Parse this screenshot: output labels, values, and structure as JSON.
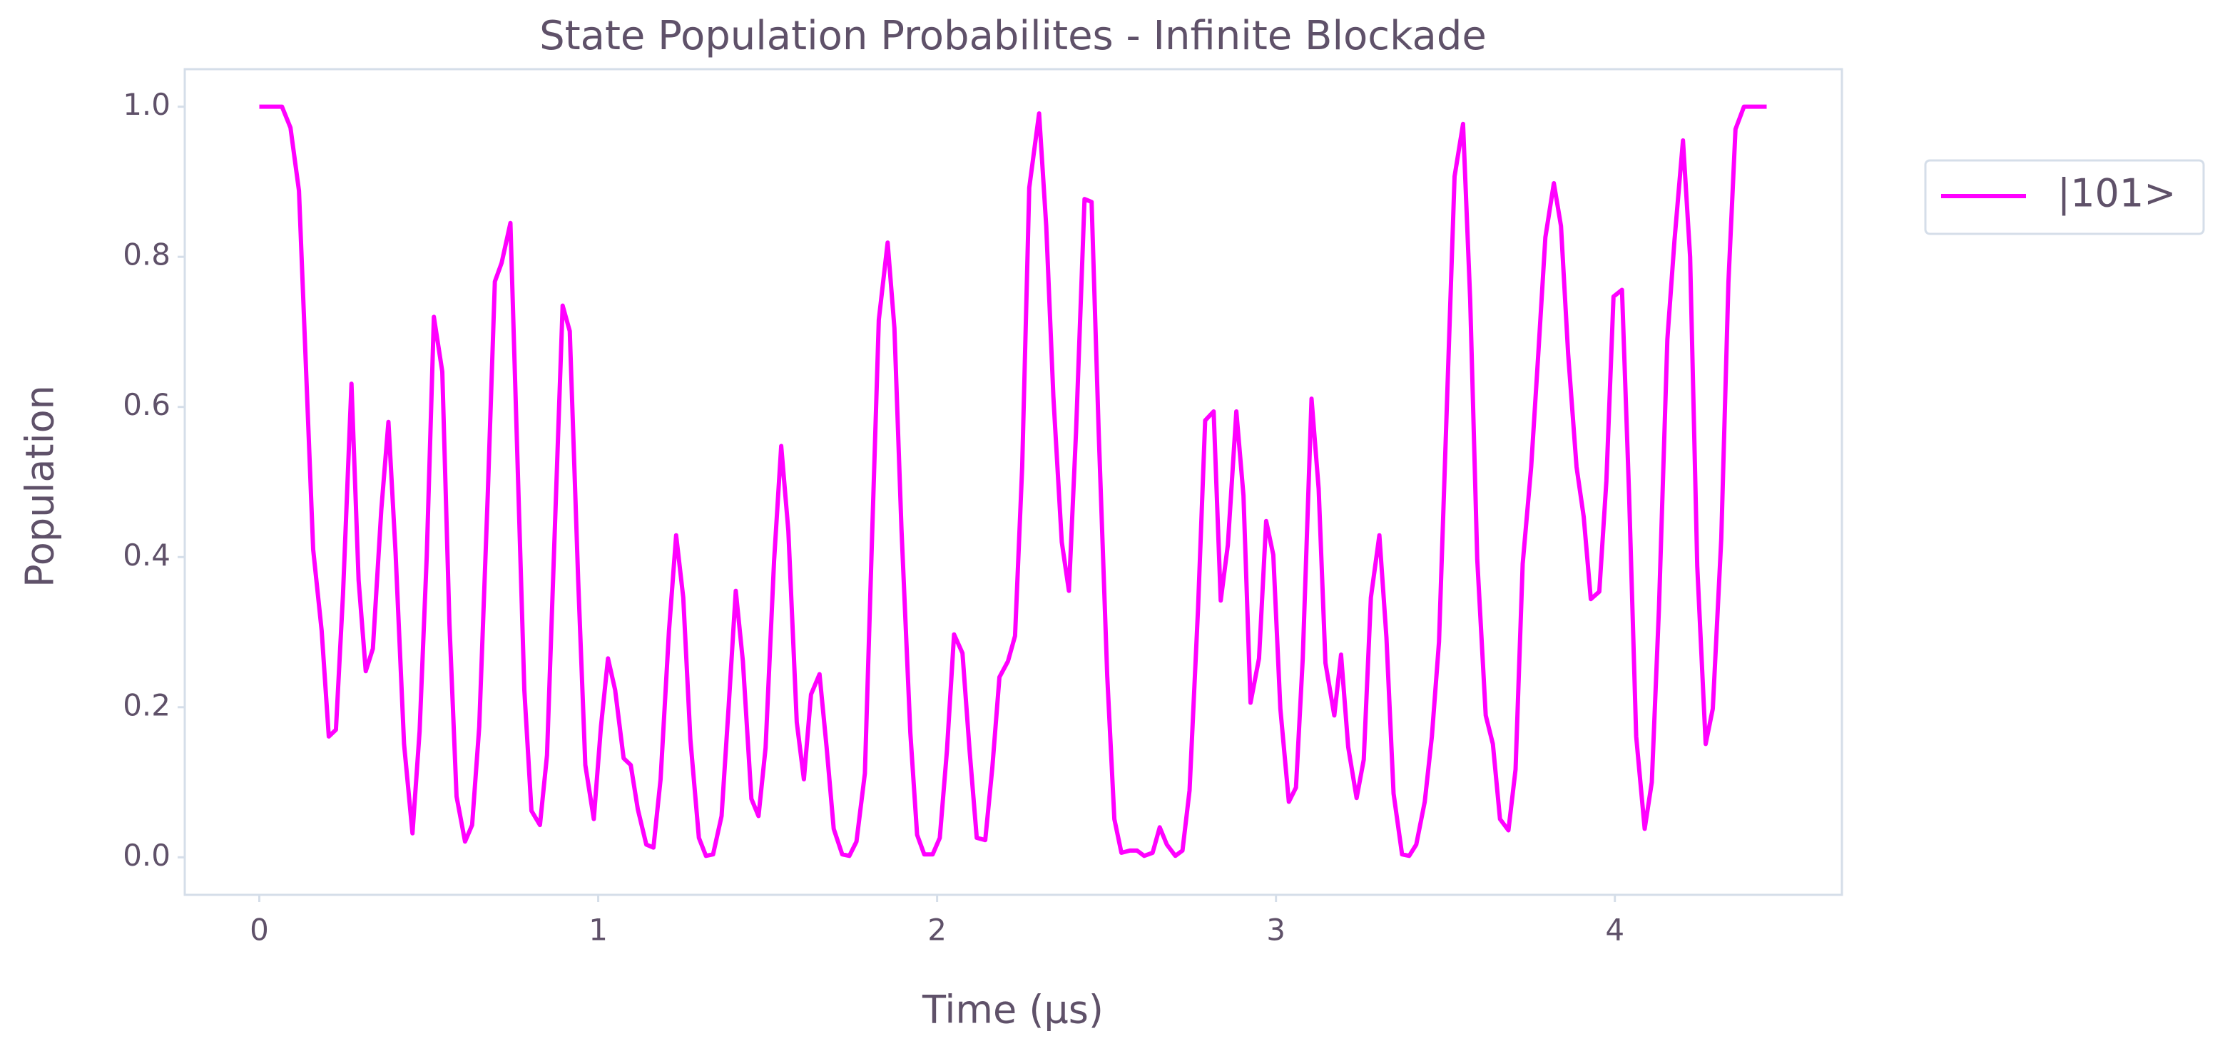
{
  "chart_data": {
    "type": "line",
    "title": "State Population Probabilites - Infinite Blockade",
    "x_label": "Time (μs)",
    "y_label": "Population",
    "x": [
      0.0,
      0.067,
      0.092,
      0.117,
      0.159,
      0.184,
      0.205,
      0.226,
      0.247,
      0.272,
      0.293,
      0.314,
      0.335,
      0.36,
      0.381,
      0.402,
      0.427,
      0.452,
      0.473,
      0.494,
      0.515,
      0.54,
      0.561,
      0.582,
      0.607,
      0.628,
      0.649,
      0.674,
      0.695,
      0.715,
      0.741,
      0.762,
      0.782,
      0.803,
      0.828,
      0.849,
      0.874,
      0.895,
      0.916,
      0.941,
      0.962,
      0.987,
      1.008,
      1.029,
      1.05,
      1.075,
      1.096,
      1.117,
      1.142,
      1.163,
      1.184,
      1.209,
      1.23,
      1.251,
      1.272,
      1.297,
      1.318,
      1.339,
      1.364,
      1.385,
      1.406,
      1.427,
      1.452,
      1.473,
      1.494,
      1.519,
      1.54,
      1.561,
      1.586,
      1.607,
      1.628,
      1.653,
      1.674,
      1.695,
      1.72,
      1.741,
      1.762,
      1.787,
      1.808,
      1.828,
      1.854,
      1.874,
      1.895,
      1.921,
      1.941,
      1.962,
      1.987,
      2.008,
      2.029,
      2.05,
      2.075,
      2.096,
      2.117,
      2.142,
      2.163,
      2.184,
      2.209,
      2.23,
      2.251,
      2.272,
      2.301,
      2.322,
      2.343,
      2.368,
      2.389,
      2.41,
      2.435,
      2.456,
      2.477,
      2.502,
      2.523,
      2.544,
      2.569,
      2.59,
      2.611,
      2.636,
      2.657,
      2.678,
      2.703,
      2.724,
      2.745,
      2.77,
      2.791,
      2.816,
      2.837,
      2.858,
      2.883,
      2.904,
      2.925,
      2.95,
      2.971,
      2.992,
      3.013,
      3.038,
      3.059,
      3.079,
      3.105,
      3.126,
      3.146,
      3.172,
      3.192,
      3.213,
      3.238,
      3.259,
      3.28,
      3.305,
      3.326,
      3.347,
      3.372,
      3.393,
      3.414,
      3.439,
      3.46,
      3.481,
      3.506,
      3.527,
      3.552,
      3.573,
      3.594,
      3.619,
      3.64,
      3.661,
      3.686,
      3.707,
      3.728,
      3.753,
      3.774,
      3.795,
      3.82,
      3.841,
      3.862,
      3.887,
      3.908,
      3.929,
      3.954,
      3.975,
      3.996,
      4.021,
      4.042,
      4.063,
      4.088,
      4.109,
      4.13,
      4.155,
      4.176,
      4.201,
      4.222,
      4.243,
      4.268,
      4.289,
      4.314,
      4.335,
      4.356,
      4.381,
      4.448
    ],
    "series": [
      {
        "name": "|101>",
        "color": "#ff00ff",
        "values": [
          1.0,
          1.0,
          0.972,
          0.888,
          0.41,
          0.302,
          0.161,
          0.17,
          0.35,
          0.631,
          0.369,
          0.248,
          0.278,
          0.463,
          0.58,
          0.406,
          0.151,
          0.032,
          0.168,
          0.401,
          0.72,
          0.647,
          0.312,
          0.081,
          0.021,
          0.043,
          0.174,
          0.482,
          0.767,
          0.792,
          0.845,
          0.526,
          0.223,
          0.062,
          0.043,
          0.136,
          0.463,
          0.735,
          0.701,
          0.369,
          0.123,
          0.051,
          0.174,
          0.265,
          0.223,
          0.132,
          0.123,
          0.064,
          0.017,
          0.013,
          0.104,
          0.302,
          0.429,
          0.346,
          0.157,
          0.026,
          0.002,
          0.004,
          0.055,
          0.202,
          0.355,
          0.261,
          0.078,
          0.055,
          0.146,
          0.395,
          0.548,
          0.435,
          0.18,
          0.104,
          0.217,
          0.244,
          0.147,
          0.038,
          0.004,
          0.002,
          0.021,
          0.112,
          0.425,
          0.716,
          0.819,
          0.705,
          0.437,
          0.166,
          0.03,
          0.004,
          0.004,
          0.026,
          0.142,
          0.297,
          0.272,
          0.142,
          0.026,
          0.023,
          0.119,
          0.24,
          0.261,
          0.295,
          0.52,
          0.892,
          0.991,
          0.841,
          0.614,
          0.42,
          0.355,
          0.567,
          0.877,
          0.873,
          0.565,
          0.242,
          0.051,
          0.006,
          0.009,
          0.009,
          0.002,
          0.006,
          0.04,
          0.017,
          0.002,
          0.009,
          0.089,
          0.331,
          0.582,
          0.594,
          0.342,
          0.416,
          0.594,
          0.482,
          0.206,
          0.265,
          0.448,
          0.403,
          0.198,
          0.074,
          0.093,
          0.265,
          0.611,
          0.491,
          0.259,
          0.189,
          0.27,
          0.147,
          0.079,
          0.13,
          0.346,
          0.429,
          0.293,
          0.085,
          0.004,
          0.002,
          0.017,
          0.074,
          0.161,
          0.287,
          0.624,
          0.907,
          0.977,
          0.743,
          0.397,
          0.189,
          0.151,
          0.051,
          0.036,
          0.117,
          0.391,
          0.52,
          0.671,
          0.826,
          0.898,
          0.841,
          0.671,
          0.52,
          0.454,
          0.344,
          0.354,
          0.501,
          0.747,
          0.756,
          0.482,
          0.161,
          0.038,
          0.1,
          0.331,
          0.69,
          0.822,
          0.955,
          0.8,
          0.388,
          0.151,
          0.198,
          0.425,
          0.766,
          0.97,
          1.0,
          1.0
        ]
      }
    ],
    "xlim": [
      -0.22,
      4.67
    ],
    "ylim": [
      -0.05,
      1.05
    ],
    "xticks": [
      0,
      1,
      2,
      3,
      4
    ],
    "yticks": [
      {
        "value": 0,
        "label": "0.0"
      },
      0.2,
      0.4,
      0.6,
      0.8,
      {
        "value": 1,
        "label": "1.0"
      }
    ],
    "grid": false,
    "legend": "outside right"
  }
}
